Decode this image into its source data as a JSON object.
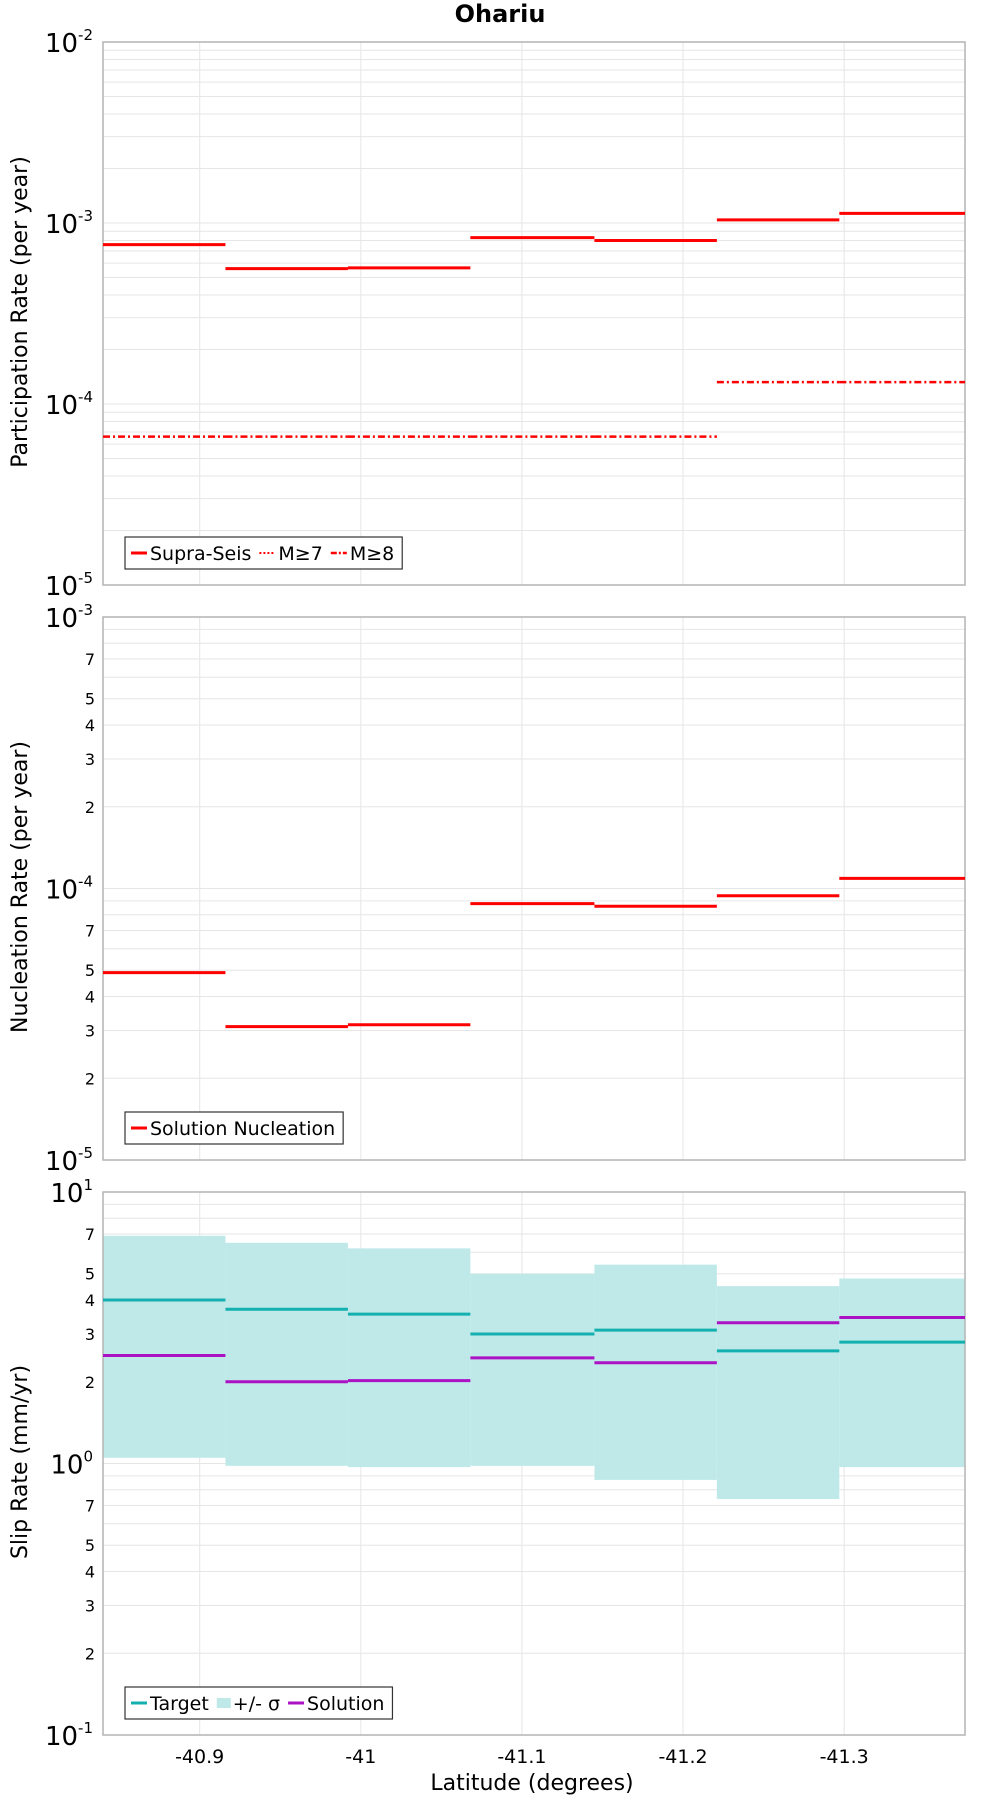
{
  "colors": {
    "supra": "#ff0000",
    "target": "#14b0b0",
    "sigma_fill": "#bfe9e9",
    "solution": "#aa12c4",
    "grid": "#e6e6e6",
    "frame": "#b4b4b4"
  },
  "chart_data": [
    {
      "type": "line",
      "title": "Ohariu",
      "ylabel": "Participation Rate (per year)",
      "xlabel": "",
      "yscale": "log",
      "ylim": [
        1e-05,
        0.01
      ],
      "xlim": [
        -40.84,
        -41.375
      ],
      "grid": true,
      "legend_position": "bottom-left",
      "x_edges": [
        -40.84,
        -40.916,
        -40.992,
        -41.068,
        -41.145,
        -41.221,
        -41.297,
        -41.375
      ],
      "y_ticks": [
        {
          "base": "10",
          "exp": "-2"
        },
        {
          "base": "10",
          "exp": "-3"
        },
        {
          "base": "10",
          "exp": "-4"
        },
        {
          "base": "10",
          "exp": "-5"
        }
      ],
      "series": [
        {
          "name": "Supra-Seis",
          "style": "solid",
          "values": [
            0.00076,
            0.00056,
            0.000565,
            0.00083,
            0.0008,
            0.00104,
            0.00113
          ]
        },
        {
          "name": "M≥7",
          "style": "dotted",
          "values": [
            0.00076,
            0.00056,
            0.000565,
            0.00083,
            0.0008,
            0.00104,
            0.00113
          ]
        },
        {
          "name": "M≥8",
          "style": "dashdot",
          "values": [
            6.6e-05,
            6.6e-05,
            6.6e-05,
            6.6e-05,
            6.6e-05,
            0.000132,
            0.000132
          ]
        }
      ]
    },
    {
      "type": "line",
      "title": "",
      "ylabel": "Nucleation Rate (per year)",
      "xlabel": "",
      "yscale": "log",
      "ylim": [
        1e-05,
        0.001
      ],
      "xlim": [
        -40.84,
        -41.375
      ],
      "grid": true,
      "legend_position": "bottom-left",
      "x_edges": [
        -40.84,
        -40.916,
        -40.992,
        -41.068,
        -41.145,
        -41.221,
        -41.297,
        -41.375
      ],
      "y_ticks": [
        {
          "base": "10",
          "exp": "-3"
        },
        {
          "base": "10",
          "exp": "-4"
        },
        {
          "base": "10",
          "exp": "-5"
        }
      ],
      "minor_tick_labels": [
        "2",
        "3",
        "4",
        "5",
        "7"
      ],
      "series": [
        {
          "name": "Solution Nucleation",
          "style": "solid",
          "values": [
            4.9e-05,
            3.1e-05,
            3.15e-05,
            8.8e-05,
            8.6e-05,
            9.4e-05,
            0.000109
          ]
        }
      ]
    },
    {
      "type": "area",
      "title": "",
      "ylabel": "Slip Rate (mm/yr)",
      "xlabel": "Latitude (degrees)",
      "yscale": "log",
      "ylim": [
        0.1,
        10
      ],
      "xlim": [
        -40.84,
        -41.375
      ],
      "grid": true,
      "legend_position": "bottom-left",
      "x_edges": [
        -40.84,
        -40.916,
        -40.992,
        -41.068,
        -41.145,
        -41.221,
        -41.297,
        -41.375
      ],
      "x_ticks": [
        "-40.9",
        "-41",
        "-41.1",
        "-41.2",
        "-41.3"
      ],
      "x_tick_values": [
        -40.9,
        -41.0,
        -41.1,
        -41.2,
        -41.3
      ],
      "y_ticks": [
        {
          "base": "10",
          "exp": "1"
        },
        {
          "base": "10",
          "exp": "0"
        },
        {
          "base": "10",
          "exp": "-1"
        }
      ],
      "minor_tick_labels": [
        "2",
        "3",
        "4",
        "5",
        "7"
      ],
      "series": [
        {
          "name": "Target",
          "style": "solid",
          "values": [
            4.0,
            3.7,
            3.55,
            3.0,
            3.1,
            2.6,
            2.8
          ]
        },
        {
          "name": "+/- σ",
          "style": "band",
          "upper": [
            6.9,
            6.5,
            6.2,
            5.0,
            5.4,
            4.5,
            4.8
          ],
          "lower": [
            1.05,
            0.98,
            0.97,
            0.98,
            0.87,
            0.74,
            0.97
          ]
        },
        {
          "name": "Solution",
          "style": "solid",
          "values": [
            2.5,
            2.0,
            2.02,
            2.45,
            2.35,
            3.3,
            3.45
          ]
        }
      ]
    }
  ]
}
